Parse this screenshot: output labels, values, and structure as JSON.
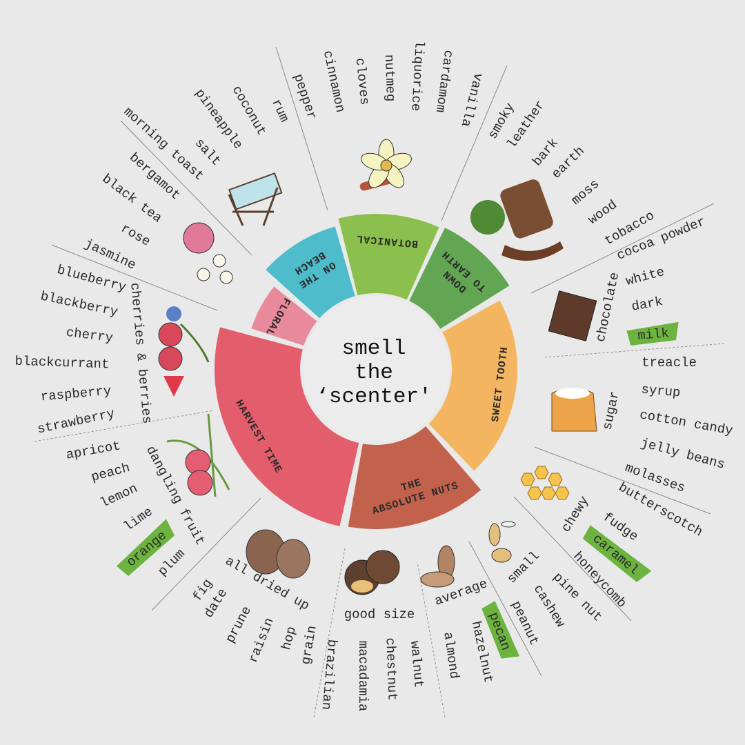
{
  "title": {
    "line1": "smell",
    "line2": "the",
    "line3": "‘scenter'"
  },
  "highlight_color": "#6db33f",
  "segments": [
    {
      "label": [
        "BOTANICAL"
      ],
      "color": "#8cc04e"
    },
    {
      "label": [
        "DOWN",
        "TO EARTH"
      ],
      "color": "#62a553"
    },
    {
      "label": [
        "SWEET TOOTH"
      ],
      "color": "#f4b560"
    },
    {
      "label": [
        "THE",
        "ABSOLUTE NUTS"
      ],
      "color": "#c2614c"
    },
    {
      "label": [
        "HARVEST TIME"
      ],
      "color": "#e35d6c"
    },
    {
      "label": [
        "FLORAL"
      ],
      "color": "#e98a9c"
    },
    {
      "label": [
        "ON THE",
        "BEACH"
      ],
      "color": "#4fbccb"
    }
  ],
  "groups": [
    {
      "heading": null,
      "items": [
        {
          "text": "morning toast"
        },
        {
          "text": "salt"
        },
        {
          "text": "pineapple"
        },
        {
          "text": "coconut"
        },
        {
          "text": "rum"
        }
      ]
    },
    {
      "heading": null,
      "items": [
        {
          "text": "pepper"
        },
        {
          "text": "cinnamon"
        },
        {
          "text": "cloves"
        },
        {
          "text": "nutmeg"
        },
        {
          "text": "liquorice"
        },
        {
          "text": "cardamom"
        },
        {
          "text": "vanilla"
        }
      ]
    },
    {
      "heading": null,
      "items": [
        {
          "text": "smoky"
        },
        {
          "text": "leather"
        },
        {
          "text": "bark"
        },
        {
          "text": "earth"
        },
        {
          "text": "moss"
        },
        {
          "text": "wood"
        },
        {
          "text": "tobacco"
        }
      ]
    },
    {
      "heading": "chocolate",
      "items": [
        {
          "text": "cocoa powder"
        },
        {
          "text": "white"
        },
        {
          "text": "dark"
        },
        {
          "text": "milk",
          "highlight": true
        }
      ]
    },
    {
      "heading": "sugar",
      "items": [
        {
          "text": "treacle"
        },
        {
          "text": "syrup"
        },
        {
          "text": "cotton candy"
        },
        {
          "text": "jelly beans"
        },
        {
          "text": "molasses"
        }
      ]
    },
    {
      "heading": "chewy",
      "items": [
        {
          "text": "butterscotch"
        },
        {
          "text": "fudge"
        },
        {
          "text": "caramel",
          "highlight": true
        },
        {
          "text": "honeycomb"
        }
      ]
    },
    {
      "heading": "small",
      "items": [
        {
          "text": "pine nut"
        },
        {
          "text": "cashew"
        },
        {
          "text": "peanut"
        }
      ]
    },
    {
      "heading": "average",
      "items": [
        {
          "text": "pecan",
          "highlight": true
        },
        {
          "text": "hazelnut"
        },
        {
          "text": "almond"
        }
      ]
    },
    {
      "heading": "good size",
      "items": [
        {
          "text": "walnut"
        },
        {
          "text": "chestnut"
        },
        {
          "text": "macadamia"
        },
        {
          "text": "brazilian"
        }
      ]
    },
    {
      "heading": "all dried up",
      "items": [
        {
          "text": "grain"
        },
        {
          "text": "hop"
        },
        {
          "text": "raisin"
        },
        {
          "text": "prune"
        },
        {
          "text": "date"
        },
        {
          "text": "fig"
        }
      ]
    },
    {
      "heading": "dangling fruit",
      "items": [
        {
          "text": "plum"
        },
        {
          "text": "orange",
          "highlight": true
        },
        {
          "text": "lime"
        },
        {
          "text": "lemon"
        },
        {
          "text": "peach"
        },
        {
          "text": "apricot"
        }
      ]
    },
    {
      "heading": "cherries & berries",
      "items": [
        {
          "text": "strawberry"
        },
        {
          "text": "raspberry"
        },
        {
          "text": "blackcurrant"
        },
        {
          "text": "cherry"
        },
        {
          "text": "blackberry"
        },
        {
          "text": "blueberry"
        }
      ]
    },
    {
      "heading": null,
      "items": [
        {
          "text": "jasmine"
        },
        {
          "text": "rose"
        },
        {
          "text": "black tea"
        },
        {
          "text": "bergamot"
        }
      ]
    }
  ],
  "illustrations": [
    "deck-chair-icon",
    "vanilla-flower-icon",
    "log-moss-pipe-icon",
    "chocolate-icon",
    "sugar-bag-icon",
    "honeycomb-icon",
    "seeds-icon",
    "almond-icon",
    "chestnut-icon",
    "fig-icon",
    "peach-icon",
    "berries-icon",
    "rose-jasmine-icon"
  ]
}
